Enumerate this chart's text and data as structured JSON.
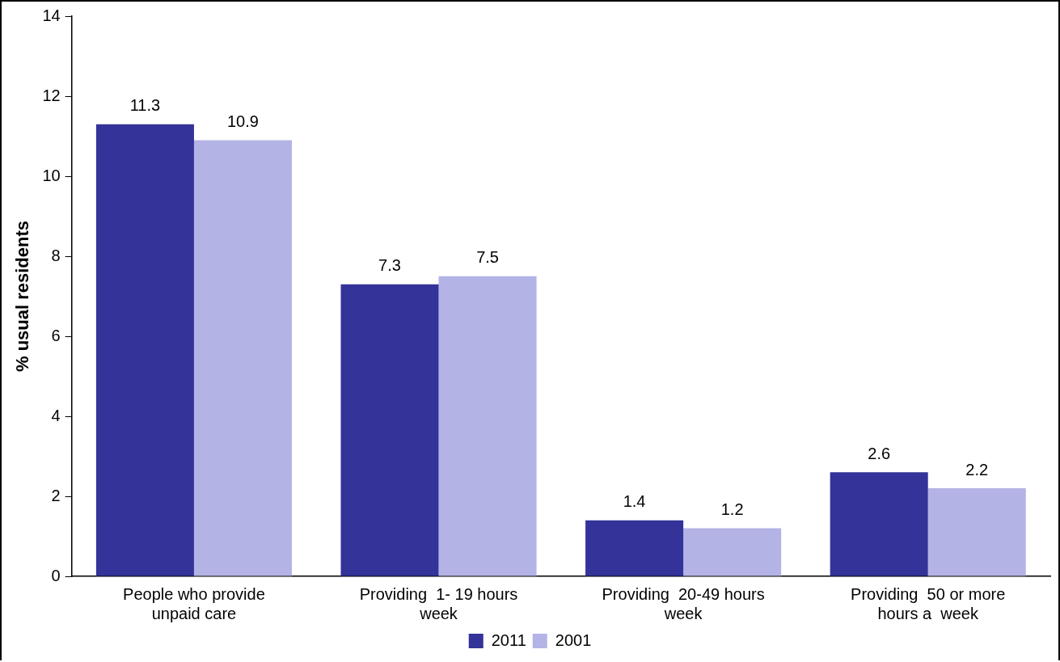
{
  "chart_data": {
    "type": "bar",
    "ylabel": "% usual residents",
    "categories": [
      "People who provide unpaid care",
      "Providing  1- 19 hours week",
      "Providing  20-49 hours week",
      "Providing  50 or more hours a  week"
    ],
    "series": [
      {
        "name": "2011",
        "color": "#333399",
        "values": [
          11.3,
          7.3,
          1.4,
          2.6
        ]
      },
      {
        "name": "2001",
        "color": "#b3b3e6",
        "values": [
          10.9,
          7.5,
          1.2,
          2.2
        ]
      }
    ],
    "ylim": [
      0,
      14
    ],
    "yticks": [
      0,
      2,
      4,
      6,
      8,
      10,
      12,
      14
    ],
    "grid": false,
    "legend": "bottom",
    "data_labels": true
  }
}
